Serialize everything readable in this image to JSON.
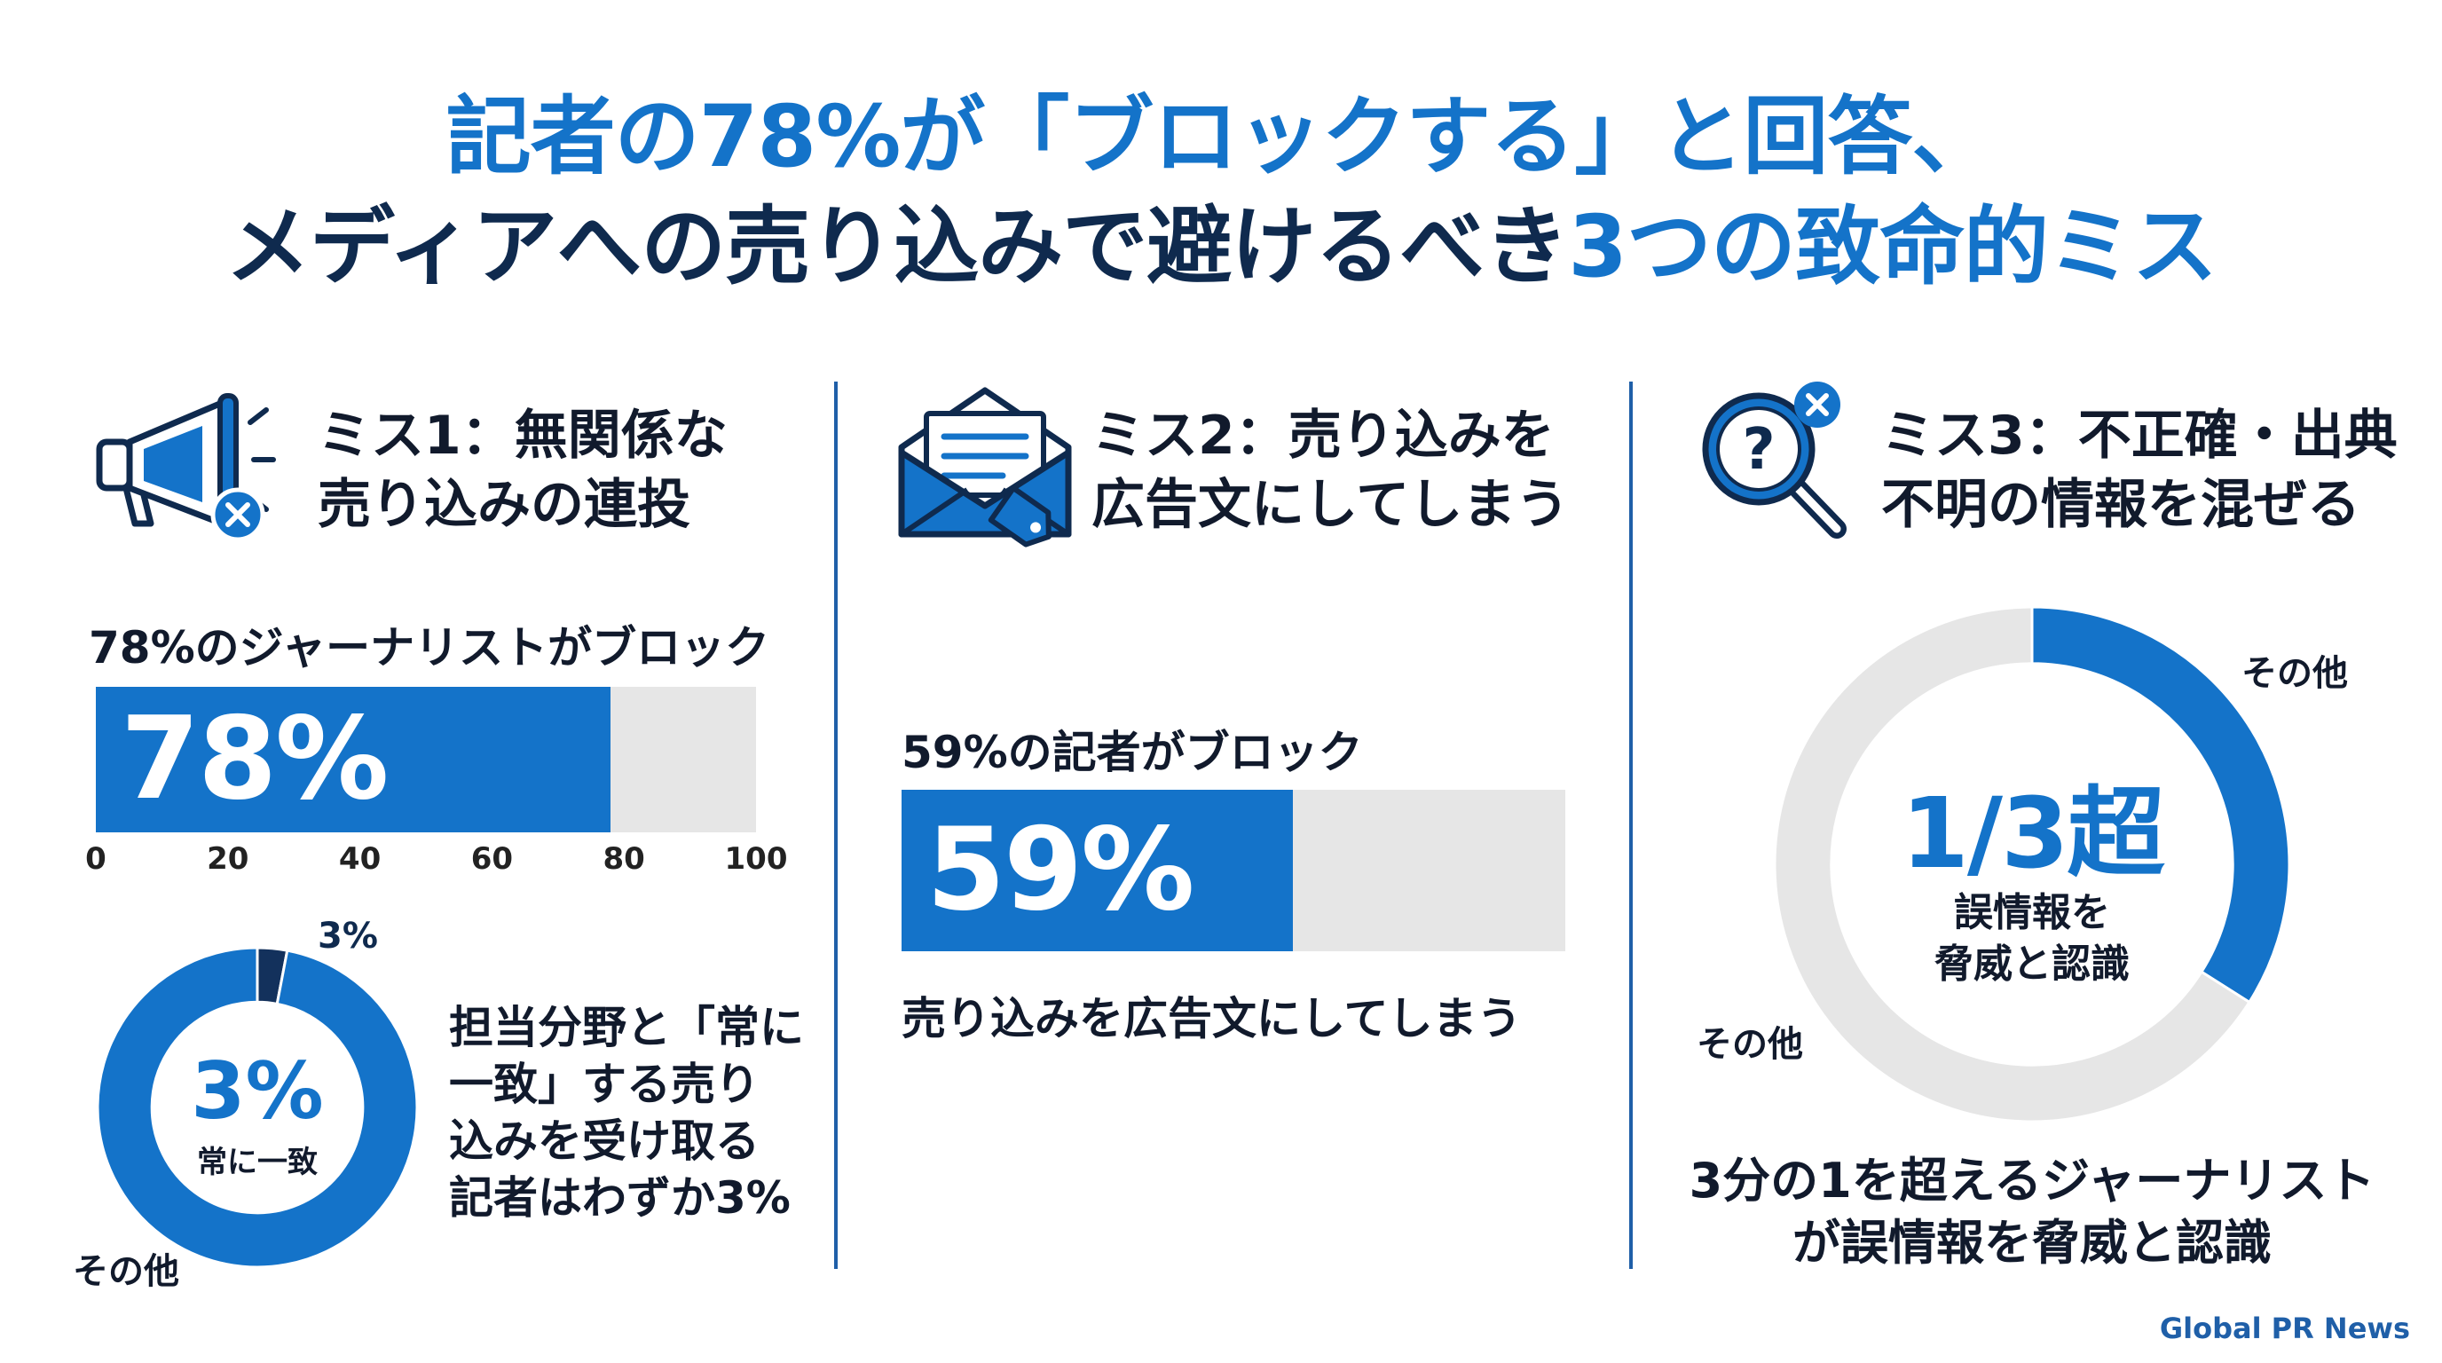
{
  "header": {
    "title_line1": "記者の78%が「ブロックする」と回答、",
    "title_line2_part1": "メディアへの売り込みで避けるべき",
    "title_line2_part2": "3つの致命的ミス"
  },
  "colors": {
    "accent": "#1473c9",
    "navy": "#0f2a4e",
    "track": "#e6e6e6",
    "donut_dark": "#13315c"
  },
  "mistakes": [
    {
      "title": "ミス1：無関係な\n売り込みの連投",
      "icon": "megaphone-icon",
      "bar_label": "78%のジャーナリストがブロック",
      "bar_value_text": "78%",
      "donut_caption": "担当分野と「常に\n一致」する売り\n込みを受け取る\n記者はわずか3%",
      "donut_center_value": "3%",
      "donut_center_label": "常に一致",
      "donut_slice_label": "3%",
      "donut_other_label": "その他"
    },
    {
      "title": "ミス2：売り込みを\n広告文にしてしまう",
      "icon": "envelope-tag-icon",
      "bar_label": "59%の記者がブロック",
      "bar_value_text": "59%",
      "bar_caption": "売り込みを広告文にしてしまう"
    },
    {
      "title": "ミス3：不正確・出典\n不明の情報を混ぜる",
      "icon": "magnifier-question-icon",
      "donut_center_value": "1/3超",
      "donut_center_label": "誤情報を\n脅威と認識",
      "donut_label_top": "その他",
      "donut_label_left": "その他",
      "caption": "3分の1を超えるジャーナリスト\nが誤情報を脅威と認識"
    }
  ],
  "chart_data": [
    {
      "type": "bar",
      "title": "78%のジャーナリストがブロック",
      "categories": [
        ""
      ],
      "values": [
        78
      ],
      "xlim": [
        0,
        100
      ],
      "xticks": [
        0,
        20,
        40,
        60,
        80,
        100
      ]
    },
    {
      "type": "pie",
      "categories": [
        "常に一致",
        "その他"
      ],
      "values": [
        3,
        97
      ]
    },
    {
      "type": "bar",
      "title": "59%の記者がブロック",
      "categories": [
        ""
      ],
      "values": [
        59
      ],
      "xlim": [
        0,
        100
      ]
    },
    {
      "type": "pie",
      "categories": [
        "誤情報を脅威と認識",
        "その他"
      ],
      "values": [
        34,
        66
      ]
    }
  ],
  "footer": {
    "brand": "Global PR News"
  }
}
